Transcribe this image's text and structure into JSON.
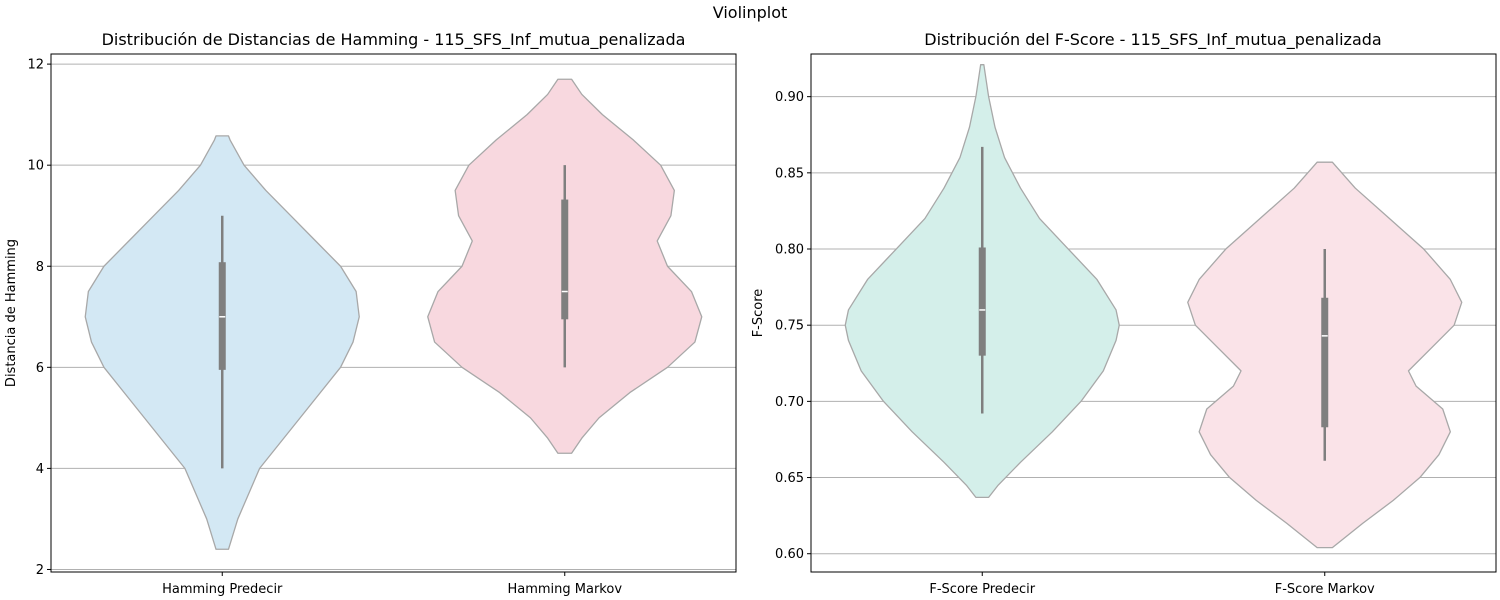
{
  "figure": {
    "suptitle": "Violinplot"
  },
  "chart_data": [
    {
      "type": "violin",
      "title": "Distribución de Distancias de Hamming - 115_SFS_Inf_mutua_penalizada",
      "xlabel": "",
      "ylabel": "Distancia de Hamming",
      "ylim": [
        1.95,
        12.2
      ],
      "yticks": [
        2,
        4,
        6,
        8,
        10,
        12
      ],
      "ytick_labels": [
        "2",
        "4",
        "6",
        "8",
        "10",
        "12"
      ],
      "grid": "y",
      "categories": [
        "Hamming Predecir",
        "Hamming Markov"
      ],
      "series": [
        {
          "color": "#d3e8f4",
          "stats": {
            "min": 4.0,
            "q1": 5.95,
            "median": 7.0,
            "q3": 8.08,
            "max": 9.0
          },
          "kde": [
            [
              2.4,
              0.02
            ],
            [
              3.0,
              0.05
            ],
            [
              4.0,
              0.12
            ],
            [
              5.0,
              0.25
            ],
            [
              6.0,
              0.38
            ],
            [
              6.5,
              0.42
            ],
            [
              7.0,
              0.44
            ],
            [
              7.5,
              0.43
            ],
            [
              8.0,
              0.38
            ],
            [
              8.5,
              0.3
            ],
            [
              9.0,
              0.22
            ],
            [
              9.5,
              0.14
            ],
            [
              10.0,
              0.07
            ],
            [
              10.5,
              0.025
            ],
            [
              10.58,
              0.02
            ]
          ]
        },
        {
          "color": "#f8d8df",
          "stats": {
            "min": 6.0,
            "q1": 6.95,
            "median": 7.5,
            "q3": 9.32,
            "max": 10.0
          },
          "kde": [
            [
              4.3,
              0.02
            ],
            [
              4.6,
              0.05
            ],
            [
              5.0,
              0.1
            ],
            [
              5.5,
              0.19
            ],
            [
              6.0,
              0.3
            ],
            [
              6.5,
              0.38
            ],
            [
              7.0,
              0.4
            ],
            [
              7.5,
              0.37
            ],
            [
              8.0,
              0.3
            ],
            [
              8.5,
              0.27
            ],
            [
              9.0,
              0.31
            ],
            [
              9.5,
              0.32
            ],
            [
              10.0,
              0.28
            ],
            [
              10.5,
              0.2
            ],
            [
              11.0,
              0.11
            ],
            [
              11.4,
              0.05
            ],
            [
              11.7,
              0.02
            ]
          ]
        }
      ]
    },
    {
      "type": "violin",
      "title": "Distribución del F-Score - 115_SFS_Inf_mutua_penalizada",
      "xlabel": "",
      "ylabel": "F-Score",
      "ylim": [
        0.588,
        0.928
      ],
      "yticks": [
        0.6,
        0.65,
        0.7,
        0.75,
        0.8,
        0.85,
        0.9
      ],
      "ytick_labels": [
        "0.60",
        "0.65",
        "0.70",
        "0.75",
        "0.80",
        "0.85",
        "0.90"
      ],
      "grid": "y",
      "categories": [
        "F-Score Predecir",
        "F-Score Markov"
      ],
      "series": [
        {
          "color": "#d4efea",
          "stats": {
            "min": 0.692,
            "q1": 0.73,
            "median": 0.76,
            "q3": 0.801,
            "max": 0.867
          },
          "kde": [
            [
              0.637,
              0.02
            ],
            [
              0.645,
              0.05
            ],
            [
              0.66,
              0.12
            ],
            [
              0.68,
              0.22
            ],
            [
              0.7,
              0.31
            ],
            [
              0.72,
              0.38
            ],
            [
              0.74,
              0.42
            ],
            [
              0.75,
              0.43
            ],
            [
              0.76,
              0.42
            ],
            [
              0.78,
              0.36
            ],
            [
              0.8,
              0.27
            ],
            [
              0.82,
              0.18
            ],
            [
              0.84,
              0.12
            ],
            [
              0.86,
              0.07
            ],
            [
              0.88,
              0.04
            ],
            [
              0.9,
              0.02
            ],
            [
              0.921,
              0.005
            ]
          ]
        },
        {
          "color": "#fae3e8",
          "stats": {
            "min": 0.661,
            "q1": 0.683,
            "median": 0.743,
            "q3": 0.768,
            "max": 0.8
          },
          "kde": [
            [
              0.604,
              0.02
            ],
            [
              0.61,
              0.05
            ],
            [
              0.62,
              0.1
            ],
            [
              0.635,
              0.18
            ],
            [
              0.65,
              0.25
            ],
            [
              0.665,
              0.3
            ],
            [
              0.68,
              0.33
            ],
            [
              0.695,
              0.31
            ],
            [
              0.71,
              0.24
            ],
            [
              0.72,
              0.22
            ],
            [
              0.735,
              0.28
            ],
            [
              0.75,
              0.34
            ],
            [
              0.765,
              0.36
            ],
            [
              0.78,
              0.33
            ],
            [
              0.8,
              0.26
            ],
            [
              0.82,
              0.17
            ],
            [
              0.84,
              0.08
            ],
            [
              0.857,
              0.02
            ]
          ]
        }
      ]
    }
  ]
}
